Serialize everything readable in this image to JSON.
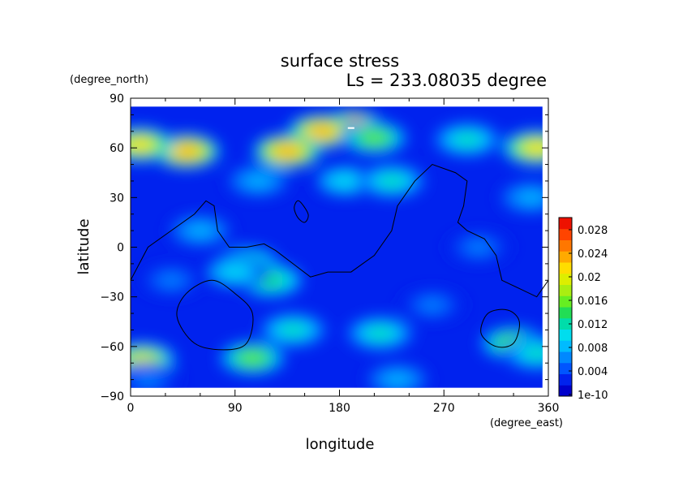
{
  "chart_data": {
    "type": "heatmap",
    "title": "surface stress",
    "subtitle": "Ls = 233.08035 degree",
    "xlabel": "longitude",
    "ylabel": "latitude",
    "xunit": "(degree_east)",
    "yunit": "(degree_north)",
    "xlim": [
      0,
      360
    ],
    "ylim": [
      -90,
      90
    ],
    "data_extent": {
      "lon": [
        0,
        355
      ],
      "lat": [
        -85,
        85
      ]
    },
    "x_ticks": [
      "0",
      "90",
      "180",
      "270",
      "360"
    ],
    "y_ticks": [
      "90",
      "60",
      "30",
      "0",
      "−30",
      "−60",
      "−90"
    ],
    "x_tick_values": [
      0,
      90,
      180,
      270,
      360
    ],
    "y_tick_values": [
      90,
      60,
      30,
      0,
      -30,
      -60,
      -90
    ],
    "colorbar": {
      "labels": [
        "0.028",
        "0.024",
        "0.02",
        "0.016",
        "0.012",
        "0.008",
        "0.004",
        "1e-10"
      ],
      "min": 0,
      "max": 0.03,
      "colors": [
        "#0000cc",
        "#0022ee",
        "#0055ff",
        "#0088ff",
        "#00bbff",
        "#00ddee",
        "#00ddaa",
        "#22dd55",
        "#66ee22",
        "#aaee11",
        "#ddee00",
        "#ffdd00",
        "#ffaa00",
        "#ff7700",
        "#ff4400",
        "#ee1100"
      ]
    },
    "hotspots": [
      {
        "lon": 190,
        "lat": 72,
        "value": 0.03
      },
      {
        "lon": 165,
        "lat": 70,
        "value": 0.024
      },
      {
        "lon": 135,
        "lat": 58,
        "value": 0.024
      },
      {
        "lon": 210,
        "lat": 66,
        "value": 0.016
      },
      {
        "lon": 48,
        "lat": 58,
        "value": 0.024
      },
      {
        "lon": 8,
        "lat": 62,
        "value": 0.022
      },
      {
        "lon": 350,
        "lat": 60,
        "value": 0.022
      },
      {
        "lon": 290,
        "lat": 65,
        "value": 0.012
      },
      {
        "lon": 185,
        "lat": 40,
        "value": 0.01
      },
      {
        "lon": 225,
        "lat": 40,
        "value": 0.012
      },
      {
        "lon": 110,
        "lat": 40,
        "value": 0.008
      },
      {
        "lon": 100,
        "lat": -10,
        "value": 0.014
      },
      {
        "lon": 120,
        "lat": -20,
        "value": 0.014
      },
      {
        "lon": 90,
        "lat": -15,
        "value": 0.01
      },
      {
        "lon": 60,
        "lat": 10,
        "value": 0.008
      },
      {
        "lon": 35,
        "lat": -20,
        "value": 0.006
      },
      {
        "lon": 140,
        "lat": -50,
        "value": 0.012
      },
      {
        "lon": 215,
        "lat": -52,
        "value": 0.012
      },
      {
        "lon": 330,
        "lat": -58,
        "value": 0.016
      },
      {
        "lon": 350,
        "lat": -64,
        "value": 0.012
      },
      {
        "lon": 10,
        "lat": -68,
        "value": 0.02
      },
      {
        "lon": 105,
        "lat": -67,
        "value": 0.016
      },
      {
        "lon": 260,
        "lat": -35,
        "value": 0.006
      },
      {
        "lon": 300,
        "lat": 0,
        "value": 0.006
      },
      {
        "lon": 345,
        "lat": 30,
        "value": 0.008
      },
      {
        "lon": 230,
        "lat": -80,
        "value": 0.008
      },
      {
        "lon": 15,
        "lat": -80,
        "value": 0.006
      }
    ],
    "contours": [
      {
        "name": "dichotomy",
        "closed": false,
        "points": [
          [
            0,
            -20
          ],
          [
            15,
            0
          ],
          [
            35,
            10
          ],
          [
            55,
            20
          ],
          [
            65,
            28
          ],
          [
            72,
            25
          ],
          [
            75,
            10
          ],
          [
            85,
            0
          ],
          [
            100,
            0
          ],
          [
            115,
            2
          ],
          [
            125,
            -2
          ],
          [
            140,
            -10
          ],
          [
            155,
            -18
          ],
          [
            170,
            -15
          ],
          [
            190,
            -15
          ],
          [
            210,
            -5
          ],
          [
            225,
            10
          ],
          [
            230,
            25
          ],
          [
            245,
            40
          ],
          [
            260,
            50
          ],
          [
            280,
            45
          ],
          [
            290,
            40
          ],
          [
            287,
            25
          ],
          [
            282,
            15
          ],
          [
            290,
            10
          ],
          [
            305,
            5
          ],
          [
            315,
            -5
          ],
          [
            320,
            -20
          ],
          [
            335,
            -25
          ],
          [
            350,
            -30
          ],
          [
            360,
            -20
          ]
        ]
      },
      {
        "name": "hellas",
        "closed": true,
        "points": [
          [
            70,
            -20
          ],
          [
            90,
            -28
          ],
          [
            105,
            -40
          ],
          [
            100,
            -58
          ],
          [
            80,
            -62
          ],
          [
            55,
            -58
          ],
          [
            40,
            -42
          ],
          [
            48,
            -28
          ]
        ]
      },
      {
        "name": "argyre",
        "closed": true,
        "points": [
          [
            325,
            -38
          ],
          [
            335,
            -45
          ],
          [
            330,
            -58
          ],
          [
            315,
            -60
          ],
          [
            302,
            -52
          ],
          [
            308,
            -40
          ]
        ]
      },
      {
        "name": "tharsis-small",
        "closed": true,
        "points": [
          [
            145,
            28
          ],
          [
            153,
            20
          ],
          [
            150,
            15
          ],
          [
            144,
            18
          ],
          [
            141,
            24
          ]
        ]
      }
    ]
  }
}
